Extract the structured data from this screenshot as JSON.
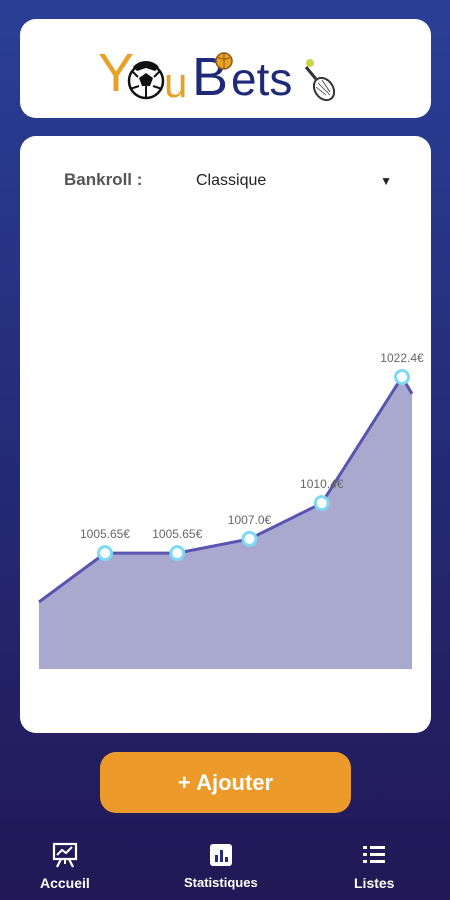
{
  "app": {
    "logo_text": "YouBets",
    "colors": {
      "logo_orange": "#e8a124",
      "logo_navy": "#1e2a78",
      "accent": "#ec9a2a"
    }
  },
  "bankroll": {
    "label": "Bankroll :",
    "selected": "Classique",
    "dropdown_icon": "caret-down-icon"
  },
  "chart_data": {
    "type": "area",
    "points": [
      {
        "value": null,
        "label": ""
      },
      {
        "value": 1005.65,
        "label": "1005.65€"
      },
      {
        "value": 1005.65,
        "label": "1005.65€"
      },
      {
        "value": 1007.0,
        "label": "1007.0€"
      },
      {
        "value": 1010.4,
        "label": "1010.4€"
      },
      {
        "value": 1022.4,
        "label": "1022.4€"
      }
    ],
    "colors": {
      "line": "#5a54b0",
      "fill": "#a9a8cf",
      "marker": "#7fd9f5"
    }
  },
  "actions": {
    "add_label": "+ Ajouter"
  },
  "nav": {
    "items": [
      {
        "label": "Accueil",
        "icon": "presentation-chart-icon"
      },
      {
        "label": "Statistiques",
        "icon": "bar-chart-icon"
      },
      {
        "label": "Listes",
        "icon": "list-icon"
      }
    ]
  }
}
